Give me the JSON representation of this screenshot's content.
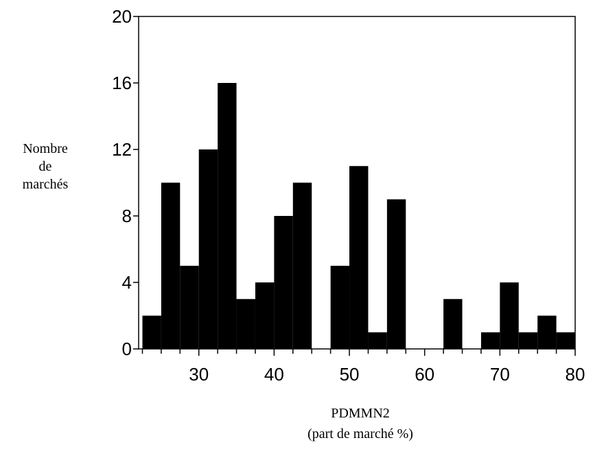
{
  "chart_data": {
    "type": "bar",
    "ylabel": [
      "Nombre",
      "de",
      "marchés"
    ],
    "xlabel": [
      "PDMMN2",
      "(part de marché %)"
    ],
    "bin_width": 2.5,
    "bins": [
      {
        "start": 22.5,
        "count": 2
      },
      {
        "start": 25,
        "count": 10
      },
      {
        "start": 27.5,
        "count": 5
      },
      {
        "start": 30,
        "count": 12
      },
      {
        "start": 32.5,
        "count": 16
      },
      {
        "start": 35,
        "count": 3
      },
      {
        "start": 37.5,
        "count": 4
      },
      {
        "start": 40,
        "count": 8
      },
      {
        "start": 42.5,
        "count": 10
      },
      {
        "start": 45,
        "count": 0
      },
      {
        "start": 47.5,
        "count": 5
      },
      {
        "start": 50,
        "count": 11
      },
      {
        "start": 52.5,
        "count": 1
      },
      {
        "start": 55,
        "count": 9
      },
      {
        "start": 57.5,
        "count": 0
      },
      {
        "start": 60,
        "count": 0
      },
      {
        "start": 62.5,
        "count": 3
      },
      {
        "start": 65,
        "count": 0
      },
      {
        "start": 67.5,
        "count": 1
      },
      {
        "start": 70,
        "count": 4
      },
      {
        "start": 72.5,
        "count": 1
      },
      {
        "start": 75,
        "count": 2
      },
      {
        "start": 77.5,
        "count": 1
      }
    ],
    "xlim": [
      22,
      80
    ],
    "ylim": [
      0,
      20
    ],
    "x_ticks": [
      30,
      40,
      50,
      60,
      70,
      80
    ],
    "y_ticks": [
      0,
      4,
      8,
      12,
      16,
      20
    ],
    "bar_color": "#000000",
    "grid": false
  }
}
